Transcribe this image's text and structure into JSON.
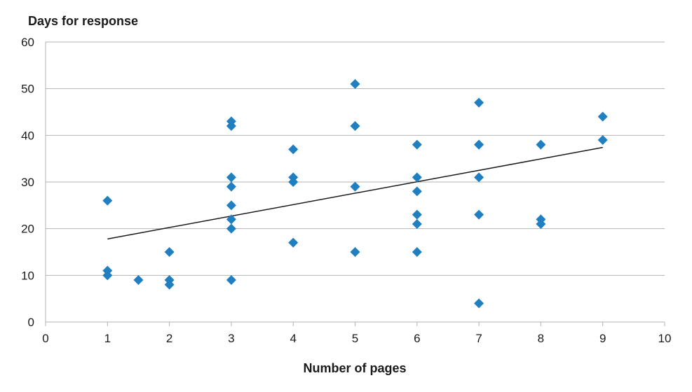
{
  "chart_data": {
    "type": "scatter",
    "title": "",
    "ylabel": "Days for response",
    "xlabel": "Number of pages",
    "xlim": [
      0,
      10
    ],
    "ylim": [
      0,
      60
    ],
    "x_ticks": [
      "0",
      "1",
      "2",
      "3",
      "4",
      "5",
      "6",
      "7",
      "8",
      "9",
      "10"
    ],
    "y_ticks": [
      "0",
      "10",
      "20",
      "30",
      "40",
      "50",
      "60"
    ],
    "grid": "horizontal",
    "legend": "none",
    "marker_color": "#1f7fc1",
    "trendline_color": "#1a1a1a",
    "gridline_color": "#b3b3b3",
    "series": [
      {
        "points": [
          [
            1,
            26
          ],
          [
            1,
            11
          ],
          [
            1,
            10
          ],
          [
            1.5,
            9
          ],
          [
            2,
            15
          ],
          [
            2,
            9
          ],
          [
            2,
            8
          ],
          [
            3,
            43
          ],
          [
            3,
            42
          ],
          [
            3,
            31
          ],
          [
            3,
            29
          ],
          [
            3,
            25
          ],
          [
            3,
            22
          ],
          [
            3,
            20
          ],
          [
            3,
            9
          ],
          [
            4,
            37
          ],
          [
            4,
            31
          ],
          [
            4,
            30
          ],
          [
            4,
            17
          ],
          [
            5,
            51
          ],
          [
            5,
            42
          ],
          [
            5,
            29
          ],
          [
            5,
            15
          ],
          [
            6,
            38
          ],
          [
            6,
            31
          ],
          [
            6,
            28
          ],
          [
            6,
            23
          ],
          [
            6,
            21
          ],
          [
            6,
            15
          ],
          [
            7,
            47
          ],
          [
            7,
            38
          ],
          [
            7,
            38
          ],
          [
            7,
            31
          ],
          [
            7,
            23
          ],
          [
            7,
            4
          ],
          [
            8,
            38
          ],
          [
            8,
            22
          ],
          [
            8,
            21
          ],
          [
            9,
            44
          ],
          [
            9,
            39
          ]
        ]
      }
    ],
    "trendline": {
      "x": [
        1,
        9
      ],
      "y": [
        17.8,
        37.4
      ]
    }
  }
}
